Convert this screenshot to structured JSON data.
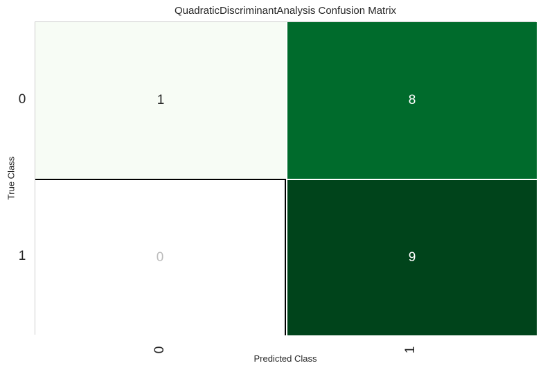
{
  "chart_data": {
    "type": "heatmap",
    "title": "QuadraticDiscriminantAnalysis Confusion Matrix",
    "xlabel": "Predicted Class",
    "ylabel": "True Class",
    "x_categories": [
      "0",
      "1"
    ],
    "y_categories": [
      "0",
      "1"
    ],
    "matrix": [
      [
        1,
        8
      ],
      [
        0,
        9
      ]
    ],
    "colormap": "Greens",
    "cell_colors": [
      [
        "#f7fcf5",
        "#006b2c"
      ],
      [
        "#ffffff",
        "#00441b"
      ]
    ],
    "text_colors": [
      [
        "#262626",
        "#ffffff"
      ],
      [
        "#bbbbbb",
        "#ffffff"
      ]
    ],
    "grid": false
  }
}
